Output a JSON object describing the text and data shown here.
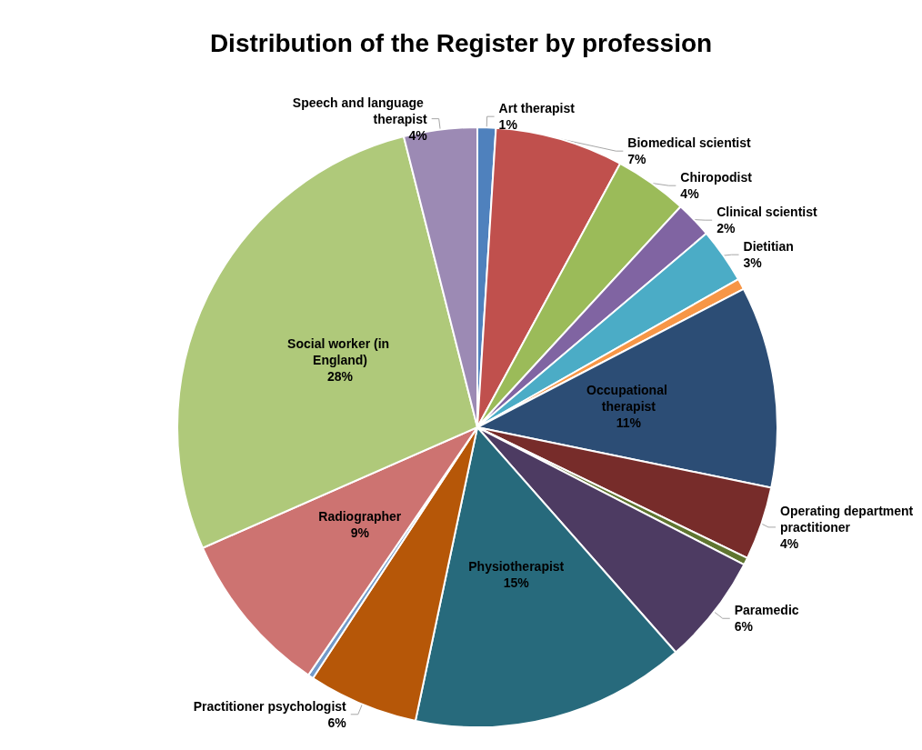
{
  "chart_data": {
    "type": "pie",
    "title": "Distribution of the Register by profession",
    "categories": [
      "Art therapist",
      "Biomedical scientist",
      "Chiropodist",
      "Clinical scientist",
      "Dietitian",
      null,
      "Occupational therapist",
      "Operating department practitioner",
      null,
      "Paramedic",
      "Physiotherapist",
      "Practitioner psychologist",
      null,
      "Radiographer",
      "Social worker (in England)",
      "Speech and language therapist"
    ],
    "values": [
      1,
      7,
      4,
      2,
      3,
      0.6,
      11,
      4,
      0.4,
      6,
      15,
      6,
      0.3,
      9,
      28,
      4
    ],
    "colors": [
      "#4f81bd",
      "#c0504d",
      "#9bbb59",
      "#8064a2",
      "#4bacc6",
      "#f79646",
      "#2c4d75",
      "#772c2a",
      "#5f7530",
      "#4d3b62",
      "#276a7c",
      "#b65708",
      "#729aca",
      "#cd7371",
      "#afc97a",
      "#9c8ab4"
    ],
    "value_labels": [
      "1%",
      "7%",
      "4%",
      "2%",
      "3%",
      null,
      "11%",
      "4%",
      null,
      "6%",
      "15%",
      "6%",
      null,
      "9%",
      "28%",
      "4%"
    ]
  }
}
